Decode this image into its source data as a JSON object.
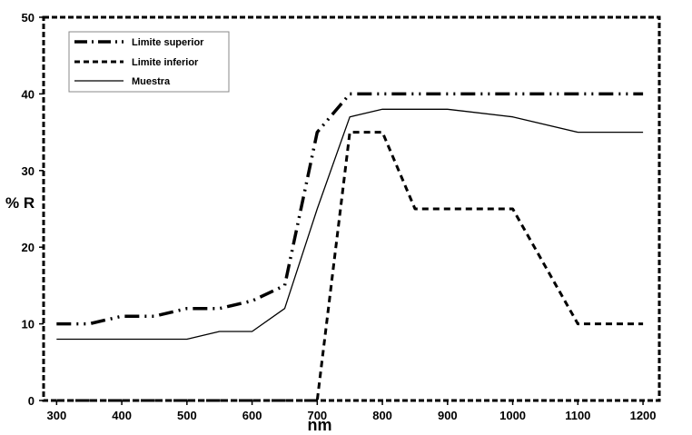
{
  "chart_data": {
    "type": "line",
    "title": "",
    "xlabel": "nm",
    "ylabel": "% R",
    "xlim": [
      280,
      1225
    ],
    "ylim": [
      0,
      50
    ],
    "x_ticks": [
      300,
      400,
      500,
      600,
      700,
      800,
      900,
      1000,
      1100,
      1200
    ],
    "y_ticks": [
      0,
      10,
      20,
      30,
      40,
      50
    ],
    "grid": false,
    "legend_position": "top-left",
    "series": [
      {
        "name": "Limite superior",
        "style": "dash-dot-dot",
        "x": [
          300,
          350,
          400,
          450,
          500,
          550,
          600,
          650,
          700,
          750,
          800,
          850,
          900,
          950,
          1000,
          1050,
          1100,
          1150,
          1200
        ],
        "y": [
          10,
          10,
          11,
          11,
          12,
          12,
          13,
          15,
          35,
          40,
          40,
          40,
          40,
          40,
          40,
          40,
          40,
          40,
          40
        ]
      },
      {
        "name": "Limite inferior",
        "style": "dashed",
        "x": [
          300,
          700,
          750,
          800,
          850,
          900,
          1000,
          1100,
          1200
        ],
        "y": [
          0,
          0,
          35,
          35,
          25,
          25,
          25,
          10,
          10
        ]
      },
      {
        "name": "Muestra",
        "style": "solid",
        "x": [
          300,
          350,
          400,
          450,
          500,
          550,
          600,
          650,
          700,
          750,
          800,
          900,
          1000,
          1100,
          1200
        ],
        "y": [
          8,
          8,
          8,
          8,
          8,
          9,
          9,
          12,
          25,
          37,
          38,
          38,
          37,
          35,
          35
        ]
      }
    ]
  }
}
